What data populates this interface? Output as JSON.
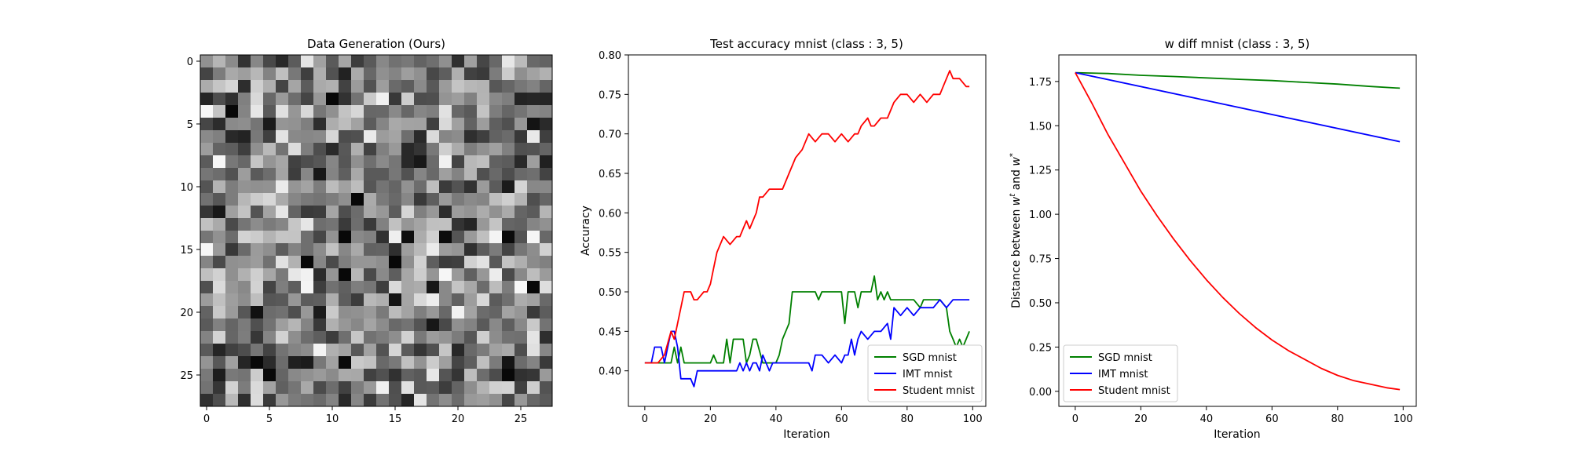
{
  "chart_data": [
    {
      "type": "heatmap",
      "title": "Data Generation (Ours)",
      "xlim": [
        -0.5,
        27.5
      ],
      "ylim": [
        27.5,
        -0.5
      ],
      "xticks": [
        0,
        5,
        10,
        15,
        20,
        25
      ],
      "yticks": [
        0,
        5,
        10,
        15,
        20,
        25
      ],
      "xtick_labels": [
        "0",
        "5",
        "10",
        "15",
        "20",
        "25"
      ],
      "ytick_labels": [
        "0",
        "5",
        "10",
        "15",
        "20",
        "25"
      ],
      "grid_size": [
        28,
        28
      ],
      "colormap": "gray",
      "grid": false
    },
    {
      "type": "line",
      "title": "Test accuracy mnist (class : 3, 5)",
      "xlabel": "Iteration",
      "ylabel": "Accuracy",
      "xlim": [
        -5,
        104
      ],
      "ylim": [
        0.355,
        0.8
      ],
      "xticks": [
        0,
        20,
        40,
        60,
        80,
        100
      ],
      "xtick_labels": [
        "0",
        "20",
        "40",
        "60",
        "80",
        "100"
      ],
      "yticks": [
        0.4,
        0.45,
        0.5,
        0.55,
        0.6,
        0.65,
        0.7,
        0.75,
        0.8
      ],
      "ytick_labels": [
        "0.40",
        "0.45",
        "0.50",
        "0.55",
        "0.60",
        "0.65",
        "0.70",
        "0.75",
        "0.80"
      ],
      "legend_position": "lower right",
      "grid": false,
      "series": [
        {
          "name": "SGD mnist",
          "color": "#008000",
          "x": [
            0,
            2,
            4,
            6,
            8,
            9,
            10,
            11,
            12,
            14,
            16,
            18,
            20,
            21,
            22,
            24,
            25,
            26,
            27,
            28,
            30,
            31,
            32,
            33,
            34,
            36,
            38,
            40,
            41,
            42,
            44,
            45,
            46,
            48,
            50,
            52,
            53,
            54,
            56,
            58,
            59,
            60,
            61,
            62,
            64,
            65,
            66,
            68,
            69,
            70,
            71,
            72,
            73,
            74,
            75,
            76,
            78,
            80,
            82,
            84,
            85,
            86,
            88,
            90,
            92,
            93,
            94,
            95,
            96,
            97,
            98,
            99
          ],
          "values": [
            0.41,
            0.41,
            0.41,
            0.41,
            0.41,
            0.43,
            0.41,
            0.43,
            0.41,
            0.41,
            0.41,
            0.41,
            0.41,
            0.42,
            0.41,
            0.41,
            0.44,
            0.41,
            0.44,
            0.44,
            0.44,
            0.41,
            0.42,
            0.44,
            0.44,
            0.41,
            0.41,
            0.41,
            0.42,
            0.44,
            0.46,
            0.5,
            0.5,
            0.5,
            0.5,
            0.5,
            0.49,
            0.5,
            0.5,
            0.5,
            0.5,
            0.5,
            0.46,
            0.5,
            0.5,
            0.48,
            0.5,
            0.5,
            0.5,
            0.52,
            0.49,
            0.5,
            0.49,
            0.5,
            0.49,
            0.49,
            0.49,
            0.49,
            0.49,
            0.48,
            0.49,
            0.49,
            0.49,
            0.49,
            0.48,
            0.45,
            0.44,
            0.43,
            0.44,
            0.43,
            0.44,
            0.45
          ]
        },
        {
          "name": "IMT mnist",
          "color": "#0000ff",
          "x": [
            0,
            2,
            3,
            5,
            6,
            7,
            8,
            9,
            10,
            11,
            12,
            14,
            15,
            16,
            18,
            20,
            24,
            26,
            28,
            29,
            30,
            31,
            32,
            33,
            34,
            35,
            36,
            38,
            39,
            40,
            42,
            44,
            46,
            48,
            50,
            51,
            52,
            53,
            54,
            56,
            58,
            60,
            61,
            62,
            63,
            64,
            65,
            66,
            68,
            70,
            72,
            74,
            75,
            76,
            78,
            80,
            82,
            84,
            86,
            88,
            90,
            92,
            94,
            96,
            99
          ],
          "values": [
            0.41,
            0.41,
            0.43,
            0.43,
            0.41,
            0.43,
            0.45,
            0.45,
            0.43,
            0.39,
            0.39,
            0.39,
            0.38,
            0.4,
            0.4,
            0.4,
            0.4,
            0.4,
            0.4,
            0.41,
            0.4,
            0.41,
            0.4,
            0.41,
            0.41,
            0.4,
            0.42,
            0.4,
            0.41,
            0.41,
            0.41,
            0.41,
            0.41,
            0.41,
            0.41,
            0.4,
            0.42,
            0.42,
            0.42,
            0.41,
            0.42,
            0.41,
            0.42,
            0.42,
            0.44,
            0.42,
            0.44,
            0.45,
            0.44,
            0.45,
            0.45,
            0.46,
            0.44,
            0.48,
            0.47,
            0.48,
            0.47,
            0.48,
            0.48,
            0.48,
            0.49,
            0.48,
            0.49,
            0.49,
            0.49
          ]
        },
        {
          "name": "Student mnist",
          "color": "#ff0000",
          "x": [
            0,
            4,
            6,
            8,
            9,
            10,
            11,
            12,
            14,
            15,
            16,
            18,
            19,
            20,
            21,
            22,
            24,
            26,
            28,
            29,
            30,
            31,
            32,
            33,
            34,
            35,
            36,
            38,
            40,
            42,
            44,
            46,
            48,
            50,
            52,
            54,
            56,
            58,
            60,
            62,
            64,
            65,
            66,
            68,
            69,
            70,
            72,
            74,
            76,
            78,
            80,
            82,
            84,
            86,
            88,
            90,
            91,
            92,
            93,
            94,
            96,
            98,
            99
          ],
          "values": [
            0.41,
            0.41,
            0.42,
            0.45,
            0.44,
            0.46,
            0.48,
            0.5,
            0.5,
            0.49,
            0.49,
            0.5,
            0.5,
            0.51,
            0.53,
            0.55,
            0.57,
            0.56,
            0.57,
            0.57,
            0.58,
            0.59,
            0.58,
            0.59,
            0.6,
            0.62,
            0.62,
            0.63,
            0.63,
            0.63,
            0.65,
            0.67,
            0.68,
            0.7,
            0.69,
            0.7,
            0.7,
            0.69,
            0.7,
            0.69,
            0.7,
            0.7,
            0.71,
            0.72,
            0.71,
            0.71,
            0.72,
            0.72,
            0.74,
            0.75,
            0.75,
            0.74,
            0.75,
            0.74,
            0.75,
            0.75,
            0.76,
            0.77,
            0.78,
            0.77,
            0.77,
            0.76,
            0.76
          ]
        }
      ]
    },
    {
      "type": "line",
      "title": "w diff mnist (class : 3, 5)",
      "xlabel": "Iteration",
      "ylabel": "Distance between w^t and w^*",
      "ylabel_parts": {
        "prefix": "Distance between ",
        "w1": "w",
        "sup1": "t",
        "middle": " and ",
        "w2": "w",
        "sup2": "*"
      },
      "xlim": [
        -5,
        104
      ],
      "ylim": [
        -0.085,
        1.9
      ],
      "xticks": [
        0,
        20,
        40,
        60,
        80,
        100
      ],
      "xtick_labels": [
        "0",
        "20",
        "40",
        "60",
        "80",
        "100"
      ],
      "yticks": [
        0,
        0.25,
        0.5,
        0.75,
        1.0,
        1.25,
        1.5,
        1.75
      ],
      "ytick_labels": [
        "0.00",
        "0.25",
        "0.50",
        "0.75",
        "1.00",
        "1.25",
        "1.50",
        "1.75"
      ],
      "legend_position": "lower left",
      "grid": false,
      "series": [
        {
          "name": "SGD mnist",
          "color": "#008000",
          "x": [
            0,
            10,
            20,
            30,
            40,
            50,
            60,
            70,
            80,
            90,
            99
          ],
          "values": [
            1.8,
            1.795,
            1.785,
            1.778,
            1.77,
            1.762,
            1.755,
            1.745,
            1.735,
            1.722,
            1.712
          ]
        },
        {
          "name": "IMT mnist",
          "color": "#0000ff",
          "x": [
            0,
            99
          ],
          "values": [
            1.8,
            1.41
          ]
        },
        {
          "name": "Student mnist",
          "color": "#ff0000",
          "x": [
            0,
            5,
            10,
            15,
            20,
            25,
            30,
            35,
            40,
            45,
            50,
            55,
            60,
            65,
            70,
            75,
            80,
            85,
            90,
            95,
            99
          ],
          "values": [
            1.8,
            1.63,
            1.45,
            1.29,
            1.13,
            0.99,
            0.86,
            0.74,
            0.63,
            0.53,
            0.44,
            0.36,
            0.29,
            0.23,
            0.18,
            0.13,
            0.09,
            0.06,
            0.04,
            0.02,
            0.01
          ]
        }
      ]
    }
  ]
}
